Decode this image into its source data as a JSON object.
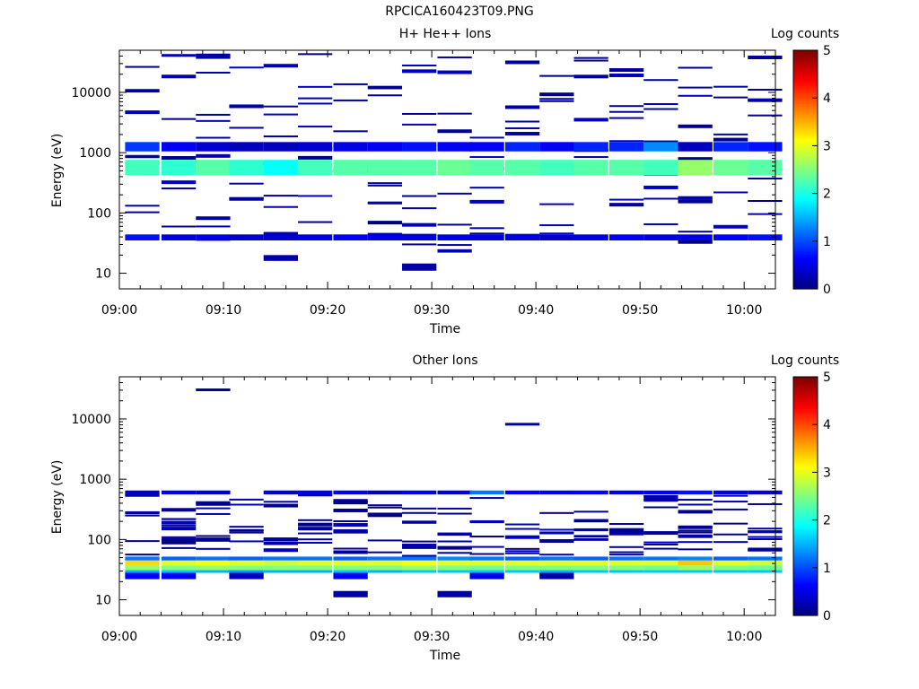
{
  "figure_title": "RPCICA160423T09.PNG",
  "chart_data": [
    {
      "type": "heatmap",
      "title": "H+ He++ Ions",
      "xlabel": "Time",
      "ylabel": "Energy (eV)",
      "colorbar_label": "Log counts",
      "colorbar_ticks": [
        "0",
        "1",
        "2",
        "3",
        "4",
        "5"
      ],
      "colorbar_range": [
        0,
        5
      ],
      "x_tick_labels": [
        "09:00",
        "09:10",
        "09:20",
        "09:30",
        "09:40",
        "09:50",
        "10:00"
      ],
      "x_range_minutes": [
        0,
        63
      ],
      "y_scale": "log",
      "y_range": [
        5.5,
        50000
      ],
      "y_tick_labels": [
        "10",
        "100",
        "1000",
        "10000"
      ],
      "time_bins_minutes": [
        2.2,
        5.7,
        9.0,
        12.2,
        15.5,
        18.8,
        22.2,
        25.5,
        28.8,
        32.2,
        35.3,
        38.7,
        42.0,
        45.3,
        48.7,
        52.0,
        55.3,
        58.7,
        62.0
      ],
      "bands": [
        {
          "e_lo": 420,
          "e_hi": 760,
          "log_counts": [
            2.2,
            2.1,
            2.3,
            2.1,
            1.9,
            2.2,
            2.3,
            2.3,
            2.3,
            2.4,
            2.3,
            2.3,
            2.2,
            2.3,
            2.3,
            2.2,
            2.6,
            2.4,
            2.3
          ]
        },
        {
          "e_lo": 1050,
          "e_hi": 1500,
          "log_counts": [
            0.9,
            0.6,
            0.4,
            0.3,
            0.3,
            0.4,
            0.5,
            0.6,
            0.7,
            0.6,
            0.6,
            0.8,
            0.6,
            0.8,
            0.8,
            1.3,
            0.3,
            0.8,
            0.7
          ]
        },
        {
          "e_lo": 35,
          "e_hi": 44,
          "log_counts": [
            0.7,
            0.5,
            0.5,
            0.4,
            0.4,
            0.5,
            0.6,
            0.5,
            0.5,
            0.5,
            0.5,
            0.5,
            0.4,
            0.5,
            0.6,
            0.5,
            0.5,
            0.6,
            0.7
          ]
        }
      ],
      "sparse_lines_per_bin": 9,
      "sparse_range": [
        30,
        45000
      ],
      "isolated_blocks": [
        {
          "minute": 15.5,
          "e_lo": 16,
          "e_hi": 20,
          "log_counts": 0.2
        },
        {
          "minute": 28.8,
          "e_lo": 11,
          "e_hi": 14.5,
          "log_counts": 0.2
        },
        {
          "minute": 32.2,
          "e_lo": 22,
          "e_hi": 25,
          "log_counts": 0.2
        }
      ]
    },
    {
      "type": "heatmap",
      "title": "Other Ions",
      "xlabel": "Time",
      "ylabel": "Energy (eV)",
      "colorbar_label": "Log counts",
      "colorbar_ticks": [
        "0",
        "1",
        "2",
        "3",
        "4",
        "5"
      ],
      "colorbar_range": [
        0,
        5
      ],
      "x_tick_labels": [
        "09:00",
        "09:10",
        "09:20",
        "09:30",
        "09:40",
        "09:50",
        "10:00"
      ],
      "x_range_minutes": [
        0,
        63
      ],
      "y_scale": "log",
      "y_range": [
        5.5,
        50000
      ],
      "y_tick_labels": [
        "10",
        "100",
        "1000",
        "10000"
      ],
      "time_bins_minutes": [
        2.2,
        5.7,
        9.0,
        12.2,
        15.5,
        18.8,
        22.2,
        25.5,
        28.8,
        32.2,
        35.3,
        38.7,
        42.0,
        45.3,
        48.7,
        52.0,
        55.3,
        58.7,
        62.0
      ],
      "bands": [
        {
          "e_lo": 37,
          "e_hi": 45,
          "log_counts": [
            3.3,
            3.0,
            3.1,
            3.0,
            2.9,
            3.0,
            3.0,
            3.0,
            3.1,
            3.0,
            3.0,
            3.0,
            3.0,
            3.0,
            3.0,
            3.0,
            3.4,
            3.0,
            2.9
          ]
        },
        {
          "e_lo": 31,
          "e_hi": 37,
          "log_counts": [
            2.6,
            2.5,
            2.6,
            2.5,
            2.5,
            2.5,
            2.5,
            2.5,
            2.6,
            2.5,
            2.4,
            2.5,
            2.5,
            2.5,
            2.5,
            2.4,
            2.6,
            2.5,
            2.4
          ]
        },
        {
          "e_lo": 28,
          "e_hi": 31,
          "log_counts": [
            1.5,
            1.6,
            1.5,
            1.4,
            1.5,
            1.5,
            1.6,
            1.5,
            1.6,
            1.6,
            1.6,
            1.6,
            1.5,
            1.6,
            1.6,
            1.6,
            1.6,
            1.6,
            1.6
          ]
        },
        {
          "e_lo": 45,
          "e_hi": 52,
          "log_counts": [
            1.2,
            1.1,
            1.2,
            1.1,
            1.2,
            1.2,
            1.1,
            1.2,
            1.2,
            1.3,
            1.2,
            1.1,
            1.2,
            1.1,
            1.2,
            1.2,
            1.3,
            1.1,
            1.2
          ]
        },
        {
          "e_lo": 22,
          "e_hi": 28,
          "log_counts": [
            0.6,
            0.6,
            null,
            0.3,
            null,
            null,
            0.6,
            null,
            null,
            null,
            0.5,
            null,
            0.2,
            null,
            null,
            null,
            null,
            null,
            null
          ]
        },
        {
          "e_lo": 560,
          "e_hi": 650,
          "log_counts": [
            0.3,
            0.5,
            0.4,
            null,
            0.4,
            0.5,
            0.5,
            0.3,
            0.5,
            0.4,
            1.2,
            0.6,
            0.5,
            0.6,
            0.5,
            0.6,
            0.7,
            0.5,
            0.4
          ]
        }
      ],
      "sparse_lines_per_bin": 8,
      "sparse_range": [
        55,
        600
      ],
      "isolated_blocks": [
        {
          "minute": 9.0,
          "e_lo": 29000,
          "e_hi": 32000,
          "log_counts": 0.2
        },
        {
          "minute": 38.7,
          "e_lo": 7800,
          "e_hi": 8600,
          "log_counts": 0.2
        },
        {
          "minute": 22.2,
          "e_lo": 11,
          "e_hi": 14,
          "log_counts": 0.2
        },
        {
          "minute": 32.2,
          "e_lo": 11,
          "e_hi": 14,
          "log_counts": 0.2
        }
      ]
    }
  ]
}
